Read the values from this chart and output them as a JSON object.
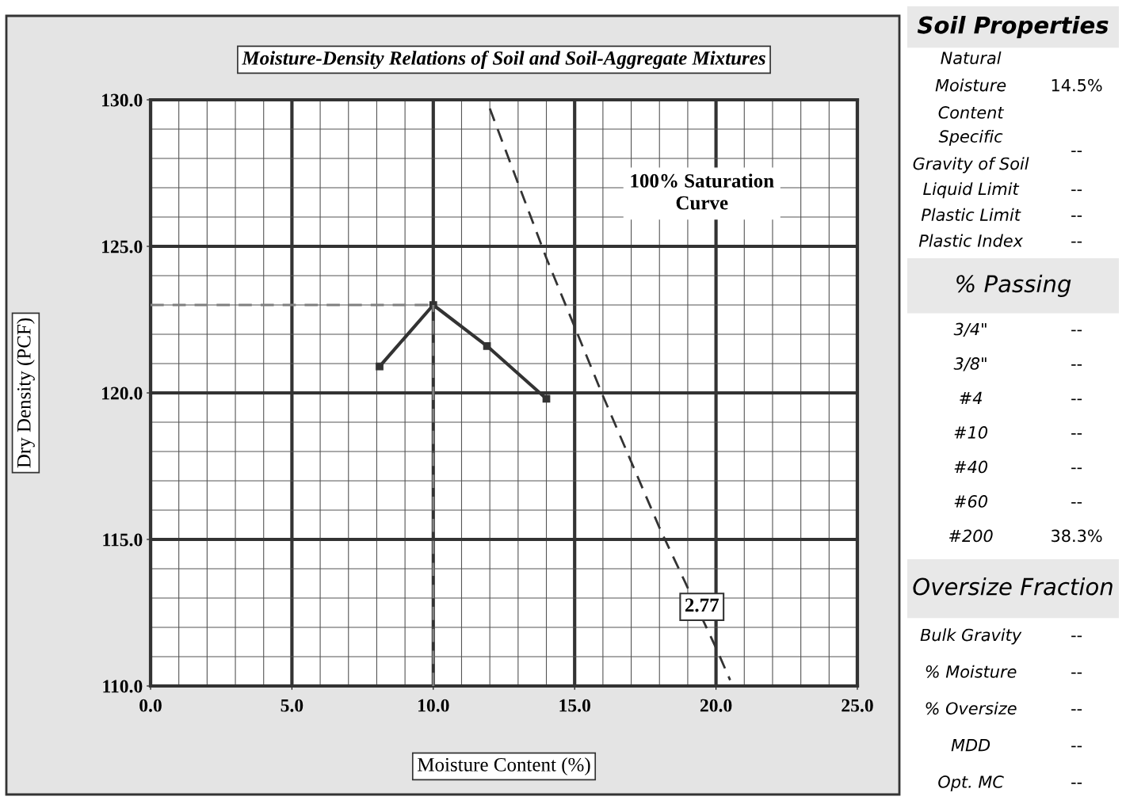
{
  "chart_data": [
    {
      "type": "line",
      "title": "Moisture-Density Relations of Soil and Soil-Aggregate Mixtures",
      "xlabel": "Moisture Content (%)",
      "ylabel": "Dry Density (PCF)",
      "xlim": [
        0,
        25
      ],
      "ylim": [
        110,
        130
      ],
      "xticks": [
        {
          "value": 0,
          "label": "0.0"
        },
        {
          "value": 5,
          "label": "5.0"
        },
        {
          "value": 10,
          "label": "10.0"
        },
        {
          "value": 15,
          "label": "15.0"
        },
        {
          "value": 20,
          "label": "20.0"
        },
        {
          "value": 25,
          "label": "25.0"
        }
      ],
      "yticks": [
        {
          "value": 110,
          "label": "110.0"
        },
        {
          "value": 115,
          "label": "115.0"
        },
        {
          "value": 120,
          "label": "120.0"
        },
        {
          "value": 125,
          "label": "125.0"
        },
        {
          "value": 130,
          "label": "130.0"
        }
      ],
      "grid": true,
      "legend": false,
      "series": [
        {
          "color": "#333333",
          "line_style": "solid",
          "marker": "square",
          "x": [
            8.1,
            10.0,
            11.9,
            14.0
          ],
          "values": [
            120.9,
            123.0,
            121.6,
            119.8
          ]
        },
        {
          "color": "#333333",
          "line_style": "dashed",
          "marker": "none",
          "x": [
            12.0,
            14.0,
            16.0,
            18.0,
            20.0,
            20.5
          ],
          "values": [
            129.7,
            124.6,
            119.9,
            115.4,
            111.3,
            110.2
          ]
        },
        {
          "color": "#7f7f7f",
          "line_style": "dashed",
          "marker": "none",
          "x": [
            0,
            10.0
          ],
          "values": [
            123.0,
            123.0
          ]
        },
        {
          "color": "#7f7f7f",
          "line_style": "dashed",
          "marker": "none",
          "x": [
            10.0,
            10.0
          ],
          "values": [
            110,
            123.0
          ]
        }
      ],
      "annotations": [
        "100% Saturation\nCurve",
        {
          "text": "2.77",
          "x": 19.5,
          "y": 112.7
        }
      ]
    },
    {
      "type": "other",
      "title": "Soil Properties",
      "categories": [
        "Natural\nMoisture\nContent",
        "Specific\nGravity of Soil",
        "Liquid Limit",
        "Plastic Limit",
        "Plastic Index"
      ],
      "value_labels": [
        "14.5%",
        "--",
        "--",
        "--",
        "--"
      ]
    },
    {
      "type": "other",
      "title": "% Passing",
      "categories": [
        "3/4\"",
        "3/8\"",
        "#4",
        "#10",
        "#40",
        "#60",
        "#200"
      ],
      "value_labels": [
        "--",
        "--",
        "--",
        "--",
        "--",
        "--",
        "38.3%"
      ]
    },
    {
      "type": "other",
      "title": "Oversize Fraction",
      "categories": [
        "Bulk Gravity",
        "% Moisture",
        "% Oversize",
        "MDD",
        "Opt. MC"
      ],
      "value_labels": [
        "--",
        "--",
        "--",
        "--",
        "--"
      ]
    }
  ]
}
